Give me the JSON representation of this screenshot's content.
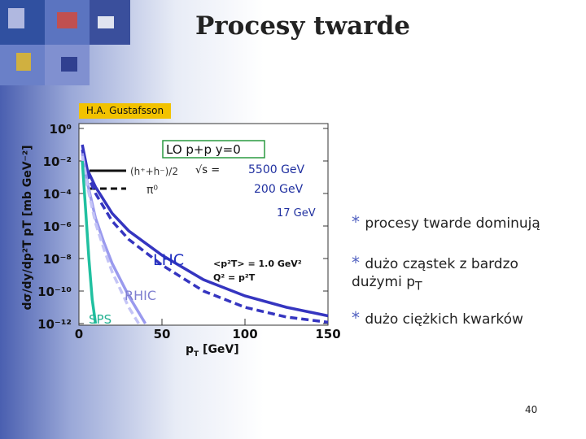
{
  "title": "Procesy twarde",
  "credit": "H.A. Gustafsson",
  "bullets": [
    "procesy twarde dominują",
    {
      "text": "dużo cząstek z bardzo dużymi p",
      "sub": "T"
    },
    "dużo  ciężkich kwarków"
  ],
  "page_number": "40",
  "chart_data": {
    "type": "line",
    "ylog": true,
    "xlabel": {
      "text": "p",
      "sub": "T",
      "rest": " [GeV]"
    },
    "ylabel": "dσ/dy/dp²T pT [mb GeV⁻²]",
    "xlim": [
      0,
      150
    ],
    "xticks": [
      0,
      50,
      100,
      150
    ],
    "ylim": [
      1e-12,
      1
    ],
    "yticks": [
      {
        "value": 1,
        "label": "10⁰"
      },
      {
        "value": 0.01,
        "label": "10⁻²"
      },
      {
        "value": 0.0001,
        "label": "10⁻⁴"
      },
      {
        "value": 1e-06,
        "label": "10⁻⁶"
      },
      {
        "value": 1e-08,
        "label": "10⁻⁸"
      },
      {
        "value": 1e-10,
        "label": "10⁻¹⁰"
      },
      {
        "value": 1e-12,
        "label": "10⁻¹²"
      }
    ],
    "annotations": [
      "LO p+p y=0",
      "(h⁺+h⁻)/2",
      "π⁰",
      "√s  =",
      "5500 GeV",
      "200  GeV",
      "17 GeV",
      "LHC",
      "RHIC",
      "SPS",
      "<p²T> = 1.0 GeV²",
      "Q² = p²T"
    ],
    "series": [
      {
        "name": "LHC",
        "color": "#3535c0",
        "dashed": false,
        "x": [
          2,
          5,
          10,
          20,
          30,
          50,
          75,
          100,
          125,
          150
        ],
        "values": [
          0.1,
          0.003,
          0.00025,
          6e-06,
          5e-07,
          1.6e-08,
          5e-10,
          5e-11,
          1e-11,
          3e-12
        ]
      },
      {
        "color": "#3535c0",
        "dashed": true,
        "x": [
          2,
          5,
          10,
          20,
          30,
          50,
          75,
          100,
          125,
          150
        ],
        "values": [
          0.05,
          0.0015,
          0.0001,
          2e-06,
          1.5e-07,
          4e-09,
          1e-10,
          1e-11,
          2.5e-12,
          1.2e-12
        ]
      },
      {
        "name": "RHIC",
        "color": "#9a9aee",
        "dashed": false,
        "x": [
          2,
          5,
          10,
          15,
          20,
          30,
          40
        ],
        "values": [
          0.03,
          0.0005,
          3e-06,
          1e-07,
          5e-09,
          5e-11,
          1e-12
        ]
      },
      {
        "color": "#c4c4f6",
        "dashed": true,
        "x": [
          2,
          5,
          10,
          15,
          20,
          30,
          36
        ],
        "values": [
          0.02,
          0.0003,
          1.5e-06,
          4e-08,
          1.5e-09,
          1e-11,
          1e-12
        ]
      },
      {
        "name": "SPS",
        "color": "#20c0a0",
        "dashed": false,
        "x": [
          2,
          4,
          6,
          8,
          10
        ],
        "values": [
          0.01,
          1e-05,
          1e-08,
          3e-11,
          1e-12
        ]
      }
    ]
  }
}
